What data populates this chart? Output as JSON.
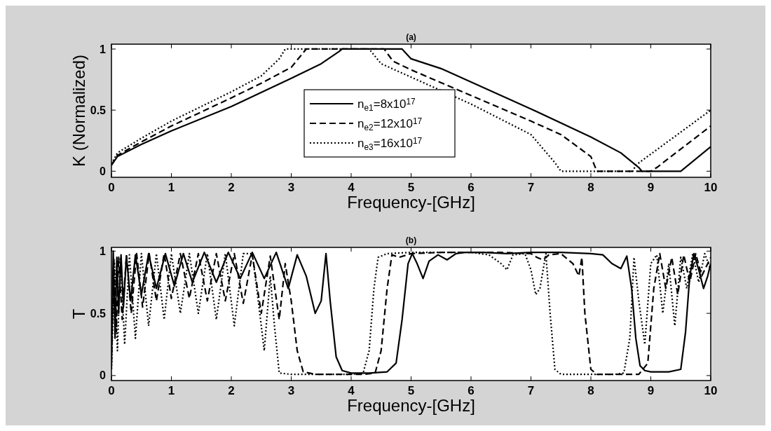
{
  "chart_data": [
    {
      "type": "line",
      "title": "(a)",
      "xlabel": "Frequency-[GHz]",
      "ylabel": "K (Normalized)",
      "xlim": [
        0,
        10
      ],
      "xticks": [
        0,
        1,
        2,
        3,
        4,
        5,
        6,
        7,
        8,
        9,
        10
      ],
      "ylim": [
        -0.05,
        1.04
      ],
      "yticks": [
        0,
        0.5,
        1
      ],
      "grid": false,
      "legend": "center",
      "marker": "none",
      "series": [
        {
          "name": "n$_{e1}$=8x10$^{17}$",
          "color": "#000000",
          "line_style": "solid",
          "x": [
            0,
            0.1,
            0.5,
            1,
            2,
            3,
            3.5,
            3.8,
            3.85,
            4.85,
            5,
            5.5,
            6,
            7,
            8,
            8.5,
            8.8,
            8.85,
            9.5,
            9.55,
            10
          ],
          "values": [
            0.05,
            0.12,
            0.22,
            0.33,
            0.53,
            0.76,
            0.88,
            0.98,
            1,
            1,
            0.92,
            0.84,
            0.73,
            0.51,
            0.28,
            0.15,
            0.03,
            0,
            0,
            0.02,
            0.2
          ]
        },
        {
          "name": "n$_{e2}$=12x10$^{17}$",
          "color": "#000000",
          "line_style": "dashed",
          "x": [
            0,
            0.1,
            0.5,
            1,
            2,
            2.5,
            3,
            3.25,
            4.55,
            4.7,
            5,
            6,
            7,
            7.5,
            8,
            8.1,
            9.0,
            9.1,
            10
          ],
          "values": [
            0.05,
            0.13,
            0.24,
            0.37,
            0.6,
            0.72,
            0.85,
            1,
            1,
            0.9,
            0.83,
            0.62,
            0.41,
            0.3,
            0.12,
            0,
            0,
            0.03,
            0.37
          ]
        },
        {
          "name": "n$_{e3}$=16x10$^{17}$",
          "color": "#000000",
          "line_style": "dotted",
          "x": [
            0,
            0.1,
            0.5,
            1,
            2,
            2.5,
            2.8,
            2.9,
            4.3,
            4.5,
            5,
            6,
            7,
            7.4,
            7.5,
            8.7,
            8.75,
            10
          ],
          "values": [
            0.06,
            0.15,
            0.27,
            0.41,
            0.65,
            0.78,
            0.92,
            1,
            1,
            0.88,
            0.77,
            0.55,
            0.3,
            0.07,
            0,
            0,
            0.05,
            0.5
          ]
        }
      ]
    },
    {
      "type": "line",
      "title": "(b)",
      "xlabel": "Frequency-[GHz]",
      "ylabel": "T",
      "xlim": [
        0,
        10
      ],
      "xticks": [
        0,
        1,
        2,
        3,
        4,
        5,
        6,
        7,
        8,
        9,
        10
      ],
      "ylim": [
        -0.04,
        1.03
      ],
      "yticks": [
        0,
        0.5,
        1
      ],
      "grid": false,
      "legend": false,
      "marker": "none",
      "series": [
        {
          "color": "#000000",
          "line_style": "solid",
          "x": [
            0,
            0.03,
            0.06,
            0.09,
            0.12,
            0.16,
            0.2,
            0.25,
            0.32,
            0.4,
            0.5,
            0.62,
            0.75,
            0.9,
            1.05,
            1.2,
            1.35,
            1.55,
            1.75,
            1.95,
            2.15,
            2.35,
            2.55,
            2.75,
            2.95,
            3.1,
            3.25,
            3.4,
            3.5,
            3.58,
            3.65,
            3.75,
            3.85,
            4.0,
            4.3,
            4.6,
            4.75,
            4.85,
            4.95,
            5.02,
            5.1,
            5.2,
            5.3,
            5.45,
            5.6,
            5.75,
            5.9,
            6.2,
            6.6,
            7,
            7.5,
            8,
            8.2,
            8.35,
            8.5,
            8.6,
            8.68,
            8.75,
            8.82,
            8.9,
            9.0,
            9.3,
            9.5,
            9.58,
            9.65,
            9.72,
            9.8,
            9.88,
            9.95,
            10
          ],
          "values": [
            0.05,
            1,
            0.3,
            0.95,
            0.5,
            0.97,
            0.55,
            0.96,
            0.6,
            0.97,
            0.65,
            0.98,
            0.7,
            0.98,
            0.72,
            0.98,
            0.75,
            0.99,
            0.75,
            0.99,
            0.78,
            0.99,
            0.78,
            0.99,
            0.7,
            0.97,
            0.8,
            0.5,
            0.6,
            0.98,
            0.6,
            0.15,
            0.04,
            0.02,
            0.02,
            0.03,
            0.1,
            0.45,
            0.9,
            0.98,
            0.9,
            0.78,
            0.92,
            0.97,
            0.93,
            0.98,
            0.99,
            0.99,
            0.98,
            0.99,
            0.99,
            0.98,
            0.97,
            0.9,
            0.86,
            0.96,
            0.7,
            0.3,
            0.08,
            0.04,
            0.03,
            0.03,
            0.05,
            0.35,
            0.8,
            0.98,
            0.85,
            0.7,
            0.8,
            0.9
          ]
        },
        {
          "color": "#000000",
          "line_style": "dashed",
          "x": [
            0,
            0.04,
            0.08,
            0.12,
            0.18,
            0.25,
            0.33,
            0.42,
            0.52,
            0.63,
            0.75,
            0.88,
            1.0,
            1.15,
            1.3,
            1.45,
            1.6,
            1.75,
            1.9,
            2.05,
            2.2,
            2.35,
            2.5,
            2.65,
            2.8,
            2.9,
            3.0,
            3.1,
            3.2,
            3.4,
            3.8,
            4.2,
            4.4,
            4.5,
            4.6,
            4.68,
            4.8,
            5.0,
            5.5,
            6,
            6.5,
            7,
            7.1,
            7.2,
            7.3,
            7.5,
            7.7,
            7.8,
            7.85,
            7.9,
            8.0,
            8.1,
            8.5,
            8.8,
            8.95,
            9.05,
            9.15,
            9.25,
            9.35,
            9.45,
            9.55,
            9.65,
            9.75,
            9.85,
            10
          ],
          "values": [
            0.1,
            0.95,
            0.35,
            0.95,
            0.45,
            0.97,
            0.5,
            0.98,
            0.55,
            0.98,
            0.6,
            0.98,
            0.62,
            0.98,
            0.62,
            0.98,
            0.6,
            0.98,
            0.6,
            0.98,
            0.58,
            0.97,
            0.5,
            0.96,
            0.45,
            0.9,
            0.6,
            0.2,
            0.03,
            0.01,
            0.01,
            0.01,
            0.02,
            0.2,
            0.7,
            0.97,
            0.95,
            0.98,
            0.99,
            0.99,
            0.99,
            0.98,
            0.95,
            0.93,
            0.97,
            0.98,
            0.9,
            0.8,
            0.95,
            0.5,
            0.05,
            0.01,
            0.01,
            0.01,
            0.1,
            0.7,
            0.98,
            0.7,
            0.95,
            0.65,
            0.97,
            0.75,
            0.98,
            0.8,
            0.95
          ]
        },
        {
          "color": "#000000",
          "line_style": "dotted",
          "x": [
            0,
            0.05,
            0.1,
            0.15,
            0.22,
            0.3,
            0.4,
            0.5,
            0.62,
            0.75,
            0.88,
            1.0,
            1.15,
            1.3,
            1.45,
            1.6,
            1.75,
            1.9,
            2.05,
            2.2,
            2.35,
            2.45,
            2.55,
            2.65,
            2.72,
            2.8,
            3.0,
            3.5,
            4.0,
            4.2,
            4.3,
            4.38,
            4.45,
            4.6,
            5,
            5.5,
            6,
            6.3,
            6.5,
            6.6,
            6.7,
            6.9,
            7.0,
            7.08,
            7.15,
            7.25,
            7.32,
            7.4,
            7.5,
            8.0,
            8.4,
            8.55,
            8.65,
            8.72,
            8.8,
            8.9,
            9.0,
            9.1,
            9.2,
            9.3,
            9.4,
            9.5,
            9.6,
            9.7,
            9.8,
            9.9,
            10
          ],
          "values": [
            0.05,
            0.9,
            0.2,
            0.95,
            0.25,
            0.97,
            0.3,
            0.98,
            0.4,
            0.98,
            0.45,
            0.98,
            0.5,
            0.98,
            0.5,
            0.98,
            0.45,
            0.98,
            0.4,
            0.98,
            0.98,
            0.6,
            0.2,
            0.8,
            0.4,
            0.02,
            0.01,
            0.01,
            0.01,
            0.02,
            0.2,
            0.7,
            0.95,
            0.98,
            0.99,
            0.99,
            0.99,
            0.97,
            0.9,
            0.85,
            0.97,
            0.98,
            0.85,
            0.65,
            0.7,
            0.98,
            0.5,
            0.05,
            0.01,
            0.01,
            0.01,
            0.02,
            0.3,
            0.95,
            0.6,
            0.25,
            0.9,
            0.97,
            0.5,
            0.9,
            0.4,
            0.95,
            0.7,
            0.98,
            0.75,
            0.98,
            0.85
          ]
        }
      ]
    }
  ]
}
